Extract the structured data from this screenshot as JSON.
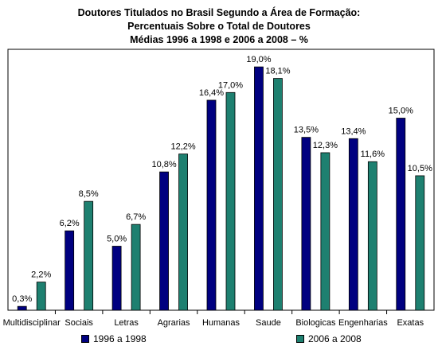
{
  "chart_data": {
    "type": "bar",
    "title_lines": [
      "Doutores Titulados no Brasil Segundo a Área de Formação:",
      "Percentuais Sobre o Total de Doutores",
      "Médias 1996 a 1998 e 2006 a 2008 – %"
    ],
    "categories": [
      "Multidisciplinar",
      "Sociais",
      "Letras",
      "Agrarias",
      "Humanas",
      "Saude",
      "Biologicas",
      "Engenharias",
      "Exatas"
    ],
    "series": [
      {
        "name": "1996 a 1998",
        "color": "#000080",
        "values": [
          0.3,
          6.2,
          5.0,
          10.8,
          16.4,
          19.0,
          13.5,
          13.4,
          15.0
        ],
        "labels": [
          "0,3%",
          "6,2%",
          "5,0%",
          "10,8%",
          "16,4%",
          "19,0%",
          "13,5%",
          "13,4%",
          "15,0%"
        ]
      },
      {
        "name": "2006 a 2008",
        "color": "#1e8070",
        "values": [
          2.2,
          8.5,
          6.7,
          12.2,
          17.0,
          18.1,
          12.3,
          11.6,
          10.5
        ],
        "labels": [
          "2,2%",
          "8,5%",
          "6,7%",
          "12,2%",
          "17,0%",
          "18,1%",
          "12,3%",
          "11,6%",
          "10,5%"
        ]
      }
    ],
    "ylim": [
      0,
      20
    ],
    "grid": false,
    "legend_position": "bottom"
  }
}
